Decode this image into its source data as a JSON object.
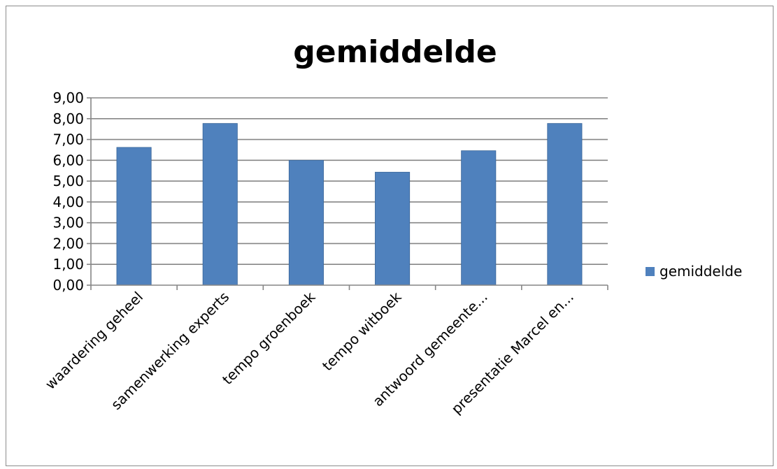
{
  "chart_data": {
    "type": "bar",
    "title": "gemiddelde",
    "xlabel": "",
    "ylabel": "",
    "ylim": [
      0,
      9
    ],
    "ytick_step": 1,
    "yticks": [
      "0,00",
      "1,00",
      "2,00",
      "3,00",
      "4,00",
      "5,00",
      "6,00",
      "7,00",
      "8,00",
      "9,00"
    ],
    "categories": [
      "waardering geheel",
      "samenwerking experts",
      "tempo groenboek",
      "tempo witboek",
      "antwoord gemeente...",
      "presentatie Marcel en..."
    ],
    "series": [
      {
        "name": "gemiddelde",
        "values": [
          6.62,
          7.77,
          6.0,
          5.43,
          6.46,
          7.77
        ],
        "color": "#4f81bd"
      }
    ],
    "grid": true,
    "legend": "right",
    "colors": {
      "gridline": "#868686",
      "axis": "#868686",
      "bar": "#4f81bd",
      "bar_edge": "#3a6699",
      "frame": "#8c8c8c"
    }
  }
}
